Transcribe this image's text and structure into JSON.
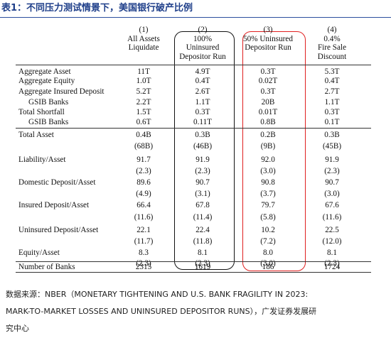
{
  "title": "表1：不同压力测试情景下，美国银行破产比例",
  "columns": [
    {
      "num": "(1)",
      "line1": "All Assets",
      "line2": "Liquidate",
      "line3": ""
    },
    {
      "num": "(2)",
      "line1": "100%",
      "line2": "Uninsured",
      "line3": "Depositor Run"
    },
    {
      "num": "(3)",
      "line1": "50% Uninsured",
      "line2": "Depositor Run",
      "line3": ""
    },
    {
      "num": "(4)",
      "line1": "0.4%",
      "line2": "Fire Sale",
      "line3": "Discount"
    }
  ],
  "rows": [
    {
      "label": "Aggregate Asset",
      "v": [
        "11T",
        "4.9T",
        "0.3T",
        "5.3T"
      ]
    },
    {
      "label": "Aggregate Equity",
      "v": [
        "1.0T",
        "0.4T",
        "0.02T",
        "0.4T"
      ]
    },
    {
      "label": "Aggregate Insured Deposit",
      "v": [
        "5.2T",
        "2.6T",
        "0.3T",
        "2.7T"
      ]
    },
    {
      "label": "GSIB Banks",
      "v": [
        "2.2T",
        "1.1T",
        "20B",
        "1.1T"
      ]
    },
    {
      "label": "Total Shortfall",
      "v": [
        "1.5T",
        "0.3T",
        "0.01T",
        "0.3T"
      ]
    },
    {
      "label": "GSIB Banks",
      "v": [
        "0.6T",
        "0.11T",
        "0.8B",
        "0.1T"
      ]
    },
    {
      "label": "Total Asset",
      "v": [
        "0.4B",
        "0.3B",
        "0.2B",
        "0.3B"
      ]
    },
    {
      "label": "",
      "v": [
        "(68B)",
        "(46B)",
        "(9B)",
        "(45B)"
      ]
    },
    {
      "label": "Liability/Asset",
      "v": [
        "91.7",
        "91.9",
        "92.0",
        "91.9"
      ]
    },
    {
      "label": "",
      "v": [
        "(2.3)",
        "(2.3)",
        "(3.0)",
        "(2.3)"
      ]
    },
    {
      "label": "Domestic Deposit/Asset",
      "v": [
        "89.6",
        "90.7",
        "90.8",
        "90.7"
      ]
    },
    {
      "label": "",
      "v": [
        "(4.9)",
        "(3.1)",
        "(3.7)",
        "(3.0)"
      ]
    },
    {
      "label": "Insured Deposit/Asset",
      "v": [
        "66.4",
        "67.8",
        "79.7",
        "67.6"
      ]
    },
    {
      "label": "",
      "v": [
        "(11.6)",
        "(11.4)",
        "(5.8)",
        "(11.6)"
      ]
    },
    {
      "label": "Uninsured Deposit/Asset",
      "v": [
        "22.1",
        "22.4",
        "10.2",
        "22.5"
      ]
    },
    {
      "label": "",
      "v": [
        "(11.7)",
        "(11.8)",
        "(7.2)",
        "(12.0)"
      ]
    },
    {
      "label": "Equity/Asset",
      "v": [
        "8.3",
        "8.1",
        "8.0",
        "8.1"
      ]
    },
    {
      "label": "",
      "v": [
        "(2.3)",
        "(2.3)",
        "(3.0)",
        "(2.3)"
      ]
    },
    {
      "label": "Number of Banks",
      "v": [
        "2315",
        "1619",
        "186",
        "1724"
      ]
    }
  ],
  "source_line1": "数据来源：NBER（MONETARY TIGHTENING AND U.S. BANK FRAGILITY IN 2023:",
  "source_line2": "MARK-TO-MARKET LOSSES AND UNINSURED DEPOSITOR RUNS），广发证券发展研",
  "source_line3": "究中心"
}
